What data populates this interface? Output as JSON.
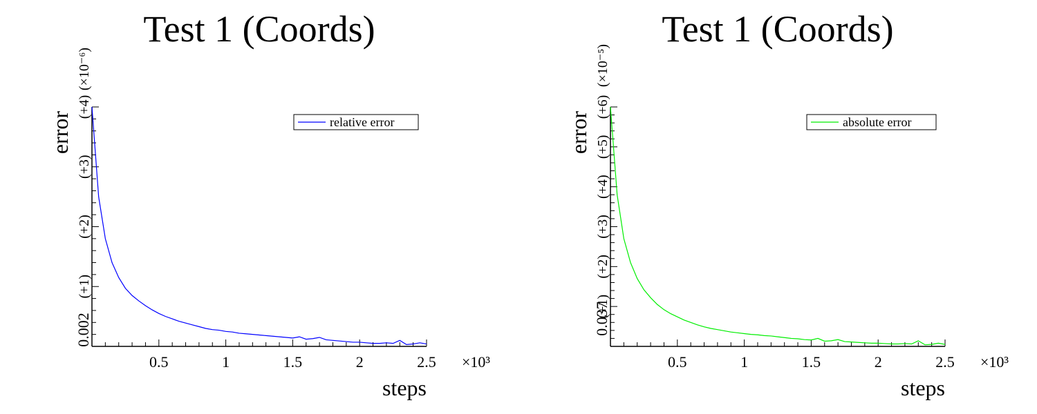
{
  "chart_data": [
    {
      "type": "line",
      "title": "Test 1 (Coords)",
      "xlabel": "steps",
      "ylabel": "error",
      "x_multiplier": "×10³",
      "y_multiplier": "(×10⁻⁶)",
      "y_base_label": "0.002",
      "y_offset_labels": [
        "(+1)",
        "(+2)",
        "(+3)",
        "(+4)"
      ],
      "y_offset_values": [
        1,
        2,
        3,
        4
      ],
      "x_ticks": [
        0.5,
        1,
        1.5,
        2,
        2.5
      ],
      "x_tick_labels": [
        "0.5",
        "1",
        "1.5",
        "2",
        "2.5"
      ],
      "xlim": [
        0.0,
        2.5
      ],
      "ylim": [
        0.0,
        4.0
      ],
      "legend_position": "top-right",
      "grid": false,
      "series": [
        {
          "name": "relative error",
          "color": "#0000ff",
          "x": [
            0.0,
            0.05,
            0.1,
            0.15,
            0.2,
            0.25,
            0.3,
            0.35,
            0.4,
            0.45,
            0.5,
            0.55,
            0.6,
            0.65,
            0.7,
            0.75,
            0.8,
            0.85,
            0.9,
            0.95,
            1.0,
            1.05,
            1.1,
            1.15,
            1.2,
            1.25,
            1.3,
            1.35,
            1.4,
            1.45,
            1.5,
            1.55,
            1.6,
            1.65,
            1.7,
            1.75,
            1.8,
            1.85,
            1.9,
            1.95,
            2.0,
            2.05,
            2.1,
            2.15,
            2.2,
            2.25,
            2.3,
            2.35,
            2.4,
            2.45,
            2.5
          ],
          "y": [
            4.0,
            2.5,
            1.8,
            1.4,
            1.15,
            0.97,
            0.85,
            0.76,
            0.68,
            0.61,
            0.55,
            0.5,
            0.46,
            0.42,
            0.39,
            0.36,
            0.33,
            0.3,
            0.28,
            0.27,
            0.25,
            0.24,
            0.22,
            0.21,
            0.2,
            0.19,
            0.18,
            0.17,
            0.16,
            0.15,
            0.14,
            0.16,
            0.12,
            0.13,
            0.15,
            0.11,
            0.1,
            0.09,
            0.08,
            0.07,
            0.07,
            0.06,
            0.05,
            0.05,
            0.06,
            0.05,
            0.1,
            0.03,
            0.04,
            0.06,
            0.04
          ]
        }
      ]
    },
    {
      "type": "line",
      "title": "Test 1 (Coords)",
      "xlabel": "steps",
      "ylabel": "error",
      "x_multiplier": "×10³",
      "y_multiplier": "(×10⁻⁵)",
      "y_base_label": "0.037",
      "y_offset_labels": [
        "(+1)",
        "(+2)",
        "(+3)",
        "(+4)",
        "(+5)",
        "(+6)"
      ],
      "y_offset_values": [
        1,
        2,
        3,
        4,
        5,
        6
      ],
      "x_ticks": [
        0.5,
        1,
        1.5,
        2,
        2.5
      ],
      "x_tick_labels": [
        "0.5",
        "1",
        "1.5",
        "2",
        "2.5"
      ],
      "xlim": [
        0.0,
        2.5
      ],
      "ylim": [
        0.0,
        6.0
      ],
      "legend_position": "top-right",
      "grid": false,
      "series": [
        {
          "name": "absolute error",
          "color": "#00ee00",
          "x": [
            0.0,
            0.05,
            0.1,
            0.15,
            0.2,
            0.25,
            0.3,
            0.35,
            0.4,
            0.45,
            0.5,
            0.55,
            0.6,
            0.65,
            0.7,
            0.75,
            0.8,
            0.85,
            0.9,
            0.95,
            1.0,
            1.05,
            1.1,
            1.15,
            1.2,
            1.25,
            1.3,
            1.35,
            1.4,
            1.45,
            1.5,
            1.55,
            1.6,
            1.65,
            1.7,
            1.75,
            1.8,
            1.85,
            1.9,
            1.95,
            2.0,
            2.05,
            2.1,
            2.15,
            2.2,
            2.25,
            2.3,
            2.35,
            2.4,
            2.45,
            2.5
          ],
          "y": [
            6.0,
            3.8,
            2.7,
            2.1,
            1.7,
            1.42,
            1.22,
            1.05,
            0.92,
            0.82,
            0.74,
            0.66,
            0.6,
            0.54,
            0.49,
            0.45,
            0.42,
            0.39,
            0.36,
            0.34,
            0.32,
            0.3,
            0.29,
            0.27,
            0.26,
            0.24,
            0.22,
            0.2,
            0.19,
            0.17,
            0.16,
            0.2,
            0.13,
            0.14,
            0.17,
            0.12,
            0.11,
            0.1,
            0.09,
            0.08,
            0.08,
            0.07,
            0.06,
            0.06,
            0.07,
            0.06,
            0.14,
            0.04,
            0.05,
            0.08,
            0.05
          ]
        }
      ]
    }
  ]
}
